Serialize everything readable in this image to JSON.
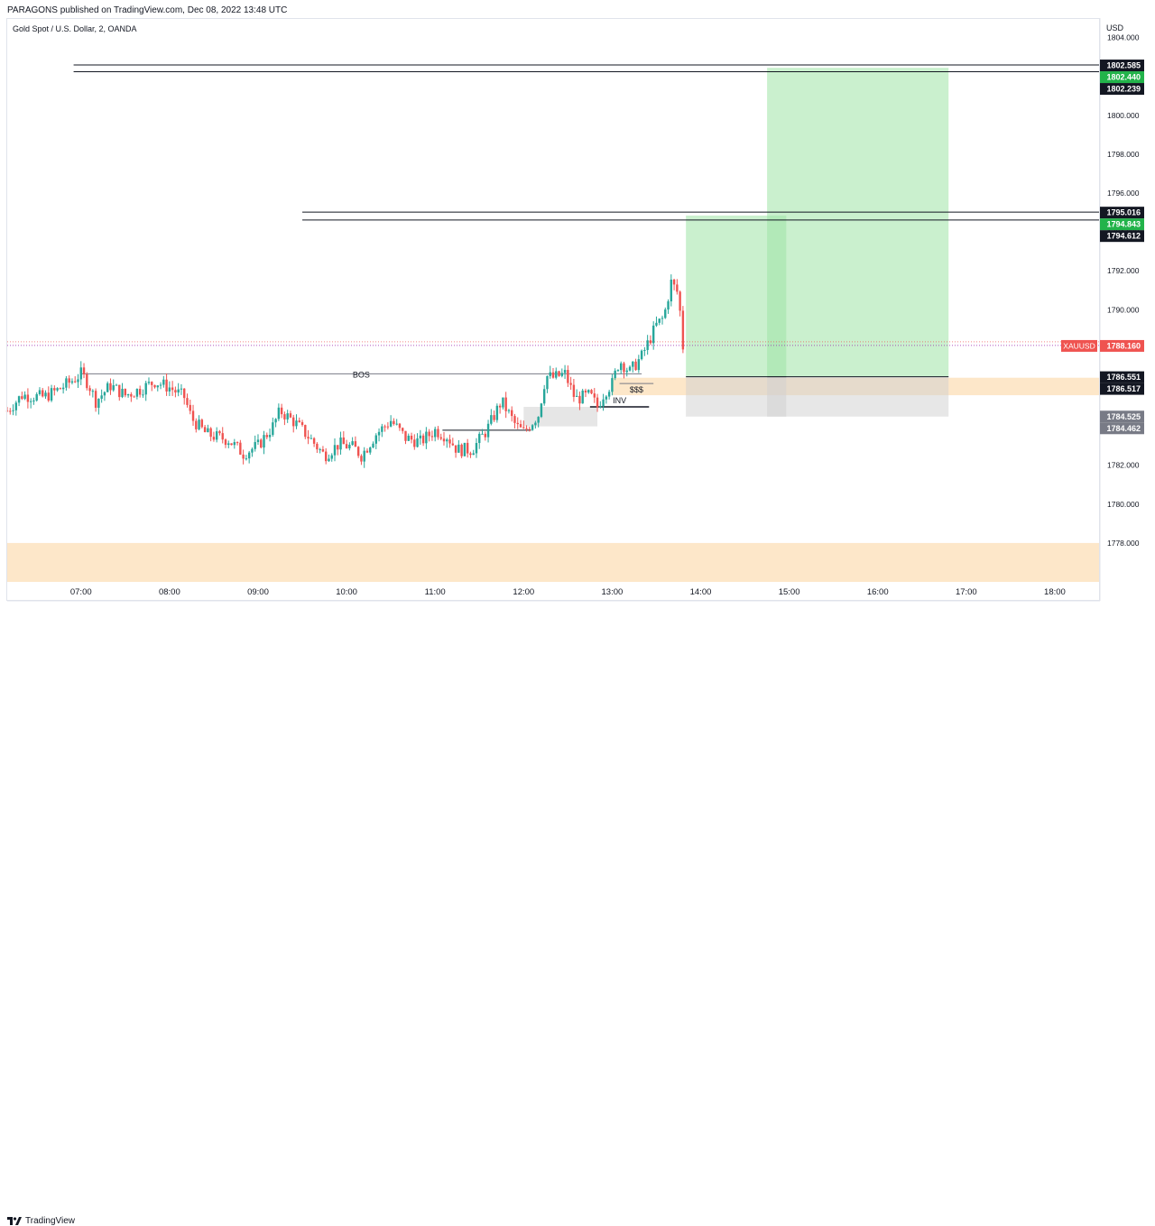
{
  "publisher_line": "PARAGONS published on TradingView.com, Dec 08, 2022 13:48 UTC",
  "footer_brand": "TradingView",
  "symbol_title": "Gold Spot / U.S. Dollar, 2, OANDA",
  "currency": "USD",
  "colors": {
    "bull": "#26a69a",
    "bear": "#ef5350",
    "target_zone": "#c8efcc",
    "stop_zone": "#e6e6e6",
    "demand_zone": "#fde3c0",
    "price_tag": "#ef5350",
    "label_dark": "#131722",
    "label_green": "#22b34a",
    "label_gray": "#787b86"
  },
  "chart_data": {
    "type": "candlestick",
    "title": "Gold Spot / U.S. Dollar, 2, OANDA",
    "ylabel": "USD",
    "ylim": [
      1776.0,
      1805.0
    ],
    "x_start": "06:10",
    "x_end": "18:30",
    "x_ticks": [
      "07:00",
      "08:00",
      "09:00",
      "10:00",
      "11:00",
      "12:00",
      "13:00",
      "14:00",
      "15:00",
      "16:00",
      "17:00",
      "18:00"
    ],
    "y_ticks": [
      "1804.000",
      "1802.000",
      "1800.000",
      "1798.000",
      "1796.000",
      "1794.000",
      "1792.000",
      "1790.000",
      "1788.000",
      "1786.000",
      "1784.000",
      "1782.000",
      "1780.000",
      "1778.000"
    ],
    "last_price": {
      "symbol": "XAUUSD",
      "value": "1788.160"
    },
    "price_labels": [
      {
        "value": "1802.585",
        "style": "dark"
      },
      {
        "value": "1802.440",
        "style": "green"
      },
      {
        "value": "1802.239",
        "style": "dark"
      },
      {
        "value": "1795.016",
        "style": "dark"
      },
      {
        "value": "1794.843",
        "style": "green"
      },
      {
        "value": "1794.612",
        "style": "dark"
      },
      {
        "value": "1786.551",
        "style": "dark"
      },
      {
        "value": "1786.517",
        "style": "dark"
      },
      {
        "value": "1784.525",
        "style": "gray"
      },
      {
        "value": "1784.462",
        "style": "gray"
      }
    ],
    "close_path": [
      [
        "06:10",
        1784.8
      ],
      [
        "06:20",
        1785.6
      ],
      [
        "06:35",
        1785.5
      ],
      [
        "06:45",
        1785.9
      ],
      [
        "06:55",
        1786.4
      ],
      [
        "07:00",
        1786.7
      ],
      [
        "07:05",
        1786.2
      ],
      [
        "07:10",
        1785.3
      ],
      [
        "07:20",
        1786.1
      ],
      [
        "07:30",
        1785.6
      ],
      [
        "07:40",
        1785.9
      ],
      [
        "07:50",
        1786.3
      ],
      [
        "08:00",
        1786.0
      ],
      [
        "08:10",
        1785.5
      ],
      [
        "08:15",
        1784.4
      ],
      [
        "08:25",
        1783.6
      ],
      [
        "08:40",
        1783.3
      ],
      [
        "08:50",
        1782.6
      ],
      [
        "09:00",
        1783.0
      ],
      [
        "09:10",
        1784.0
      ],
      [
        "09:15",
        1784.8
      ],
      [
        "09:25",
        1784.2
      ],
      [
        "09:35",
        1783.4
      ],
      [
        "09:45",
        1782.5
      ],
      [
        "09:55",
        1783.1
      ],
      [
        "10:05",
        1782.9
      ],
      [
        "10:10",
        1782.5
      ],
      [
        "10:20",
        1783.6
      ],
      [
        "10:30",
        1784.3
      ],
      [
        "10:40",
        1783.4
      ],
      [
        "10:50",
        1783.2
      ],
      [
        "11:00",
        1783.8
      ],
      [
        "11:08",
        1783.5
      ],
      [
        "11:15",
        1782.8
      ],
      [
        "11:25",
        1782.8
      ],
      [
        "11:35",
        1783.8
      ],
      [
        "11:45",
        1785.3
      ],
      [
        "11:55",
        1784.0
      ],
      [
        "12:00",
        1783.7
      ],
      [
        "12:10",
        1784.6
      ],
      [
        "12:15",
        1786.6
      ],
      [
        "12:20",
        1786.5
      ],
      [
        "12:28",
        1786.7
      ],
      [
        "12:35",
        1785.4
      ],
      [
        "12:45",
        1785.6
      ],
      [
        "12:50",
        1785.0
      ],
      [
        "12:55",
        1785.8
      ],
      [
        "13:00",
        1786.2
      ],
      [
        "13:05",
        1787.4
      ],
      [
        "13:12",
        1786.8
      ],
      [
        "13:20",
        1787.6
      ],
      [
        "13:30",
        1789.2
      ],
      [
        "13:35",
        1789.6
      ],
      [
        "13:40",
        1791.4
      ],
      [
        "13:45",
        1790.8
      ],
      [
        "13:48",
        1788.1
      ]
    ],
    "annotations": [
      {
        "text": "BOS",
        "level": 1786.7,
        "from": "07:00",
        "to": "13:20"
      },
      {
        "text": "$$$",
        "level": 1786.2,
        "from": "13:05",
        "to": "13:28"
      },
      {
        "text": "INV",
        "level": 1785.0,
        "from": "12:45",
        "to": "13:25"
      }
    ],
    "horizontal_lines": [
      {
        "level": 1802.585,
        "from": "06:55",
        "to": "18:30"
      },
      {
        "level": 1802.239,
        "from": "06:55",
        "to": "18:30"
      },
      {
        "level": 1795.016,
        "from": "09:30",
        "to": "18:30"
      },
      {
        "level": 1794.612,
        "from": "09:30",
        "to": "18:30"
      },
      {
        "level": 1783.8,
        "from": "11:05",
        "to": "12:05"
      }
    ],
    "positions": [
      {
        "entry": 1786.55,
        "target": 1794.84,
        "stop": 1784.5,
        "from": "13:50",
        "to": "14:58"
      },
      {
        "entry": 1786.55,
        "target": 1802.44,
        "stop": 1784.5,
        "from": "14:45",
        "to": "16:48"
      }
    ],
    "zones": [
      {
        "name": "demand-zone-upper",
        "top": 1786.5,
        "bottom": 1785.6,
        "from": "13:00",
        "to": "18:30"
      },
      {
        "name": "demand-zone-lower",
        "top": 1778.0,
        "bottom": 1776.0,
        "from": "06:10",
        "to": "18:30"
      },
      {
        "name": "gray-block",
        "top": 1785.0,
        "bottom": 1784.0,
        "from": "12:00",
        "to": "12:50"
      }
    ]
  }
}
